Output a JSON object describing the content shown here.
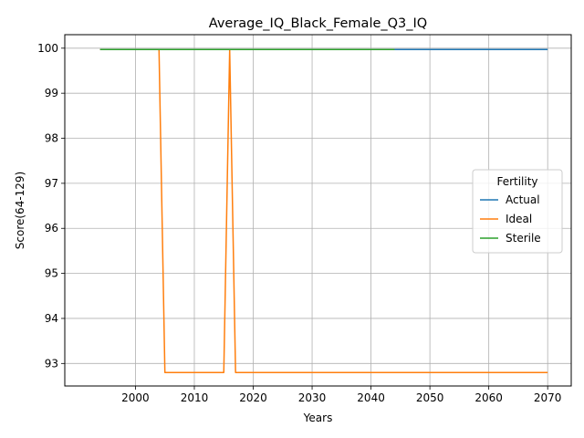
{
  "chart_data": {
    "type": "line",
    "title": "Average_IQ_Black_Female_Q3_IQ",
    "xlabel": "Years",
    "ylabel": "Score(64-129)",
    "xlim": [
      1988,
      2074
    ],
    "ylim": [
      92.5,
      100.3
    ],
    "xticks": [
      2000,
      2010,
      2020,
      2030,
      2040,
      2050,
      2060,
      2070
    ],
    "yticks": [
      93,
      94,
      95,
      96,
      97,
      98,
      99,
      100
    ],
    "grid": true,
    "legend": {
      "title": "Fertility",
      "placement": "center-right",
      "entries": [
        "Actual",
        "Ideal",
        "Sterile"
      ]
    },
    "series": [
      {
        "name": "Actual",
        "color": "#1f77b4",
        "points": [
          [
            1994,
            99.97
          ],
          [
            2070,
            99.97
          ]
        ]
      },
      {
        "name": "Ideal",
        "color": "#ff7f0e",
        "points": [
          [
            1994,
            99.97
          ],
          [
            2004,
            99.97
          ],
          [
            2005,
            92.8
          ],
          [
            2015,
            92.8
          ],
          [
            2016,
            99.97
          ],
          [
            2017,
            92.8
          ],
          [
            2070,
            92.8
          ]
        ]
      },
      {
        "name": "Sterile",
        "color": "#2ca02c",
        "points": [
          [
            1994,
            99.97
          ],
          [
            2044,
            99.97
          ]
        ]
      }
    ]
  }
}
